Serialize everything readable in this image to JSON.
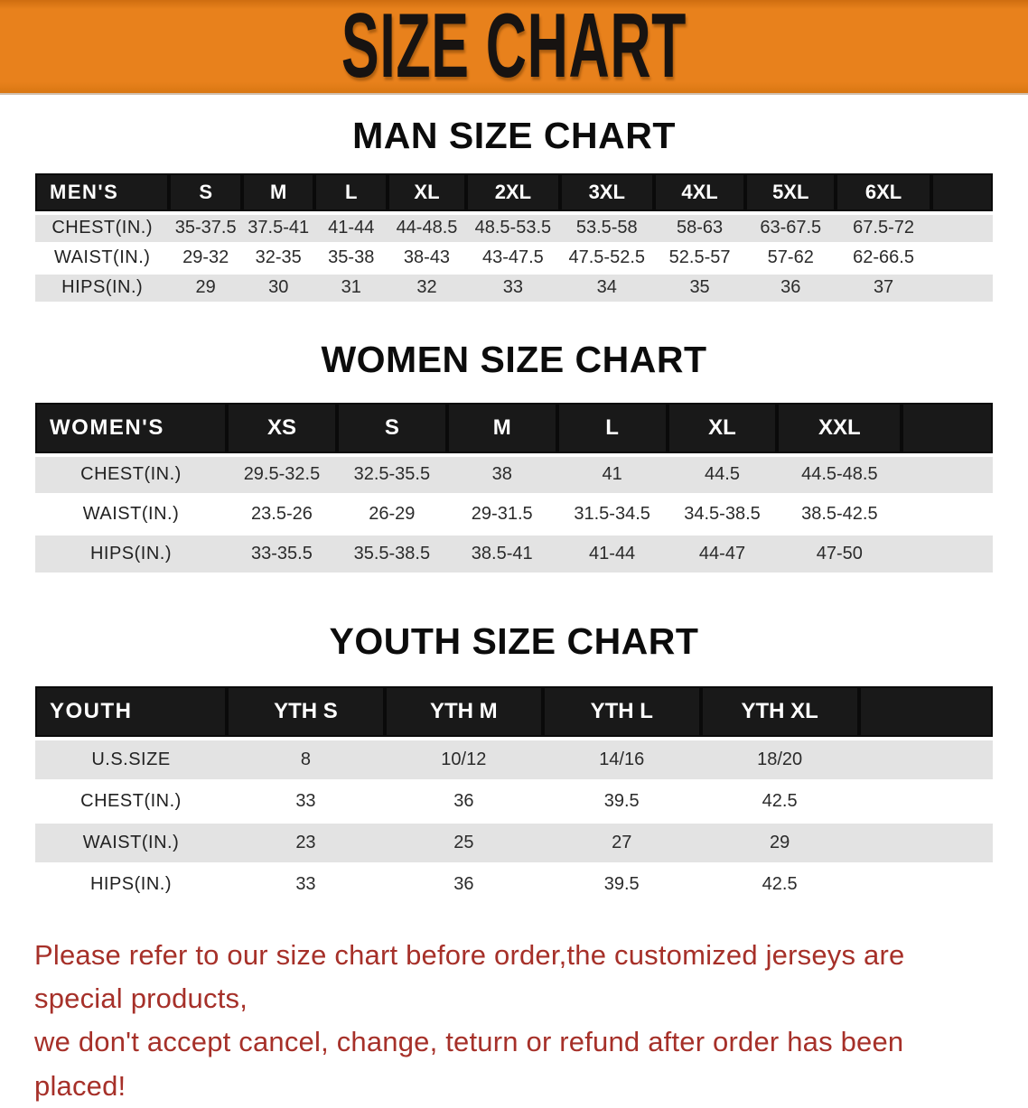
{
  "banner": {
    "title": "SIZE CHART",
    "bg_color": "#e8811c",
    "text_color": "#171311"
  },
  "sections": [
    {
      "heading": "MAN SIZE CHART",
      "header_label": "MEN'S",
      "columns": [
        "S",
        "M",
        "L",
        "XL",
        "2XL",
        "3XL",
        "4XL",
        "5XL",
        "6XL"
      ],
      "rows": [
        {
          "label": "CHEST(IN.)",
          "values": [
            "35-37.5",
            "37.5-41",
            "41-44",
            "44-48.5",
            "48.5-53.5",
            "53.5-58",
            "58-63",
            "63-67.5",
            "67.5-72"
          ]
        },
        {
          "label": "WAIST(IN.)",
          "values": [
            "29-32",
            "32-35",
            "35-38",
            "38-43",
            "43-47.5",
            "47.5-52.5",
            "52.5-57",
            "57-62",
            "62-66.5"
          ]
        },
        {
          "label": "HIPS(IN.)",
          "values": [
            "29",
            "30",
            "31",
            "32",
            "33",
            "34",
            "35",
            "36",
            "37"
          ]
        }
      ]
    },
    {
      "heading": "WOMEN SIZE CHART",
      "header_label": "WOMEN'S",
      "columns": [
        "XS",
        "S",
        "M",
        "L",
        "XL",
        "XXL"
      ],
      "rows": [
        {
          "label": "CHEST(IN.)",
          "values": [
            "29.5-32.5",
            "32.5-35.5",
            "38",
            "41",
            "44.5",
            "44.5-48.5"
          ]
        },
        {
          "label": "WAIST(IN.)",
          "values": [
            "23.5-26",
            "26-29",
            "29-31.5",
            "31.5-34.5",
            "34.5-38.5",
            "38.5-42.5"
          ]
        },
        {
          "label": "HIPS(IN.)",
          "values": [
            "33-35.5",
            "35.5-38.5",
            "38.5-41",
            "41-44",
            "44-47",
            "47-50"
          ]
        }
      ]
    },
    {
      "heading": "YOUTH SIZE CHART",
      "header_label": "YOUTH",
      "columns": [
        "YTH S",
        "YTH M",
        "YTH L",
        "YTH XL"
      ],
      "rows": [
        {
          "label": "U.S.SIZE",
          "values": [
            "8",
            "10/12",
            "14/16",
            "18/20"
          ]
        },
        {
          "label": "CHEST(IN.)",
          "values": [
            "33",
            "36",
            "39.5",
            "42.5"
          ]
        },
        {
          "label": "WAIST(IN.)",
          "values": [
            "23",
            "25",
            "27",
            "29"
          ]
        },
        {
          "label": "HIPS(IN.)",
          "values": [
            "33",
            "36",
            "39.5",
            "42.5"
          ]
        }
      ]
    }
  ],
  "disclaimer": {
    "line1": "Please refer to our size chart before order,the customized jerseys are special products,",
    "line2": "we don't accept cancel, change, teturn or refund after order has been placed!",
    "color": "#a63029"
  }
}
